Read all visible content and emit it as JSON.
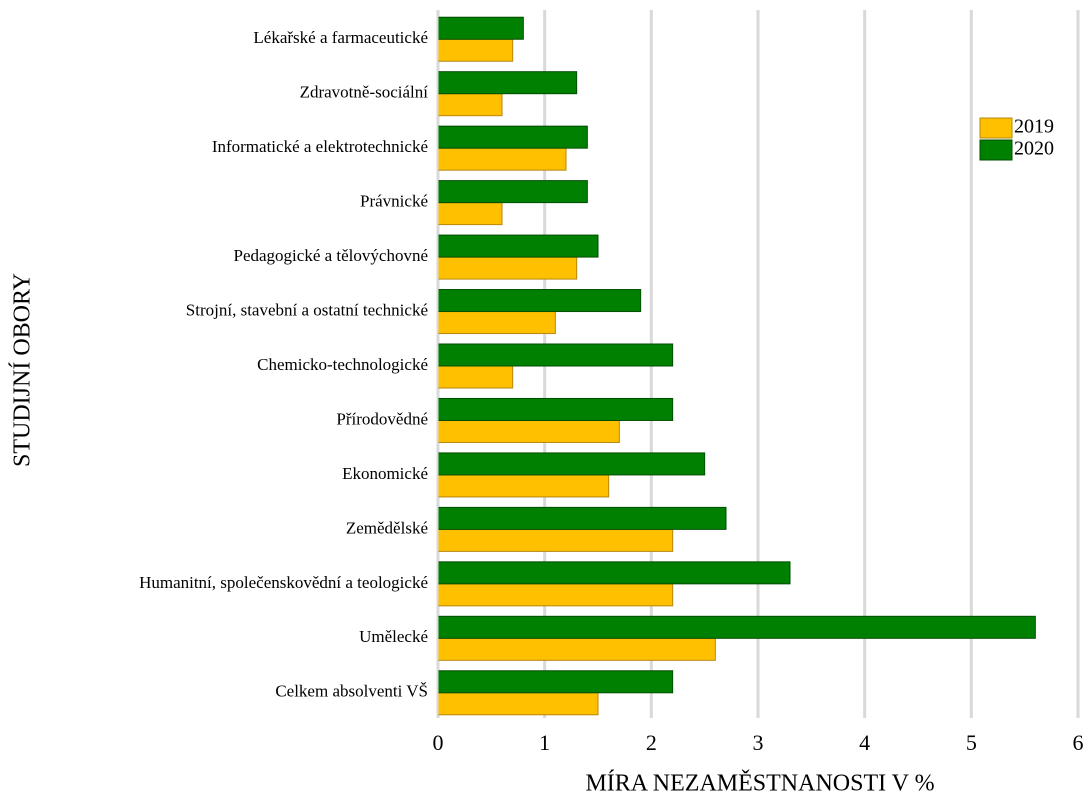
{
  "chart_data": {
    "type": "bar",
    "orientation": "horizontal",
    "x_label": "MÍRA NEZAMĚSTNANOSTI V %",
    "y_label": "STUDIJNÍ OBORY",
    "categories": [
      "Lékařské a farmaceutické",
      "Zdravotně-sociální",
      "Informatické a elektrotechnické",
      "Právnické",
      "Pedagogické a tělovýchovné",
      "Strojní, stavební a ostatní technické",
      "Chemicko-technologické",
      "Přírodovědné",
      "Ekonomické",
      "Zemědělské",
      "Humanitní, společenskovědní a teologické",
      "Umělecké",
      "Celkem absolventi VŠ"
    ],
    "series": [
      {
        "name": "2019",
        "color": "#ffc000",
        "values": [
          0.7,
          0.6,
          1.2,
          0.6,
          1.3,
          1.1,
          0.7,
          1.7,
          1.6,
          2.2,
          2.2,
          2.6,
          1.5
        ]
      },
      {
        "name": "2020",
        "color": "#008000",
        "values": [
          0.8,
          1.3,
          1.4,
          1.4,
          1.5,
          1.9,
          2.2,
          2.2,
          2.5,
          2.7,
          3.3,
          5.6,
          2.2
        ]
      }
    ],
    "xlim": [
      0,
      6
    ],
    "xticks": [
      0,
      1,
      2,
      3,
      4,
      5,
      6
    ],
    "grid": true,
    "legend": "upper right"
  }
}
